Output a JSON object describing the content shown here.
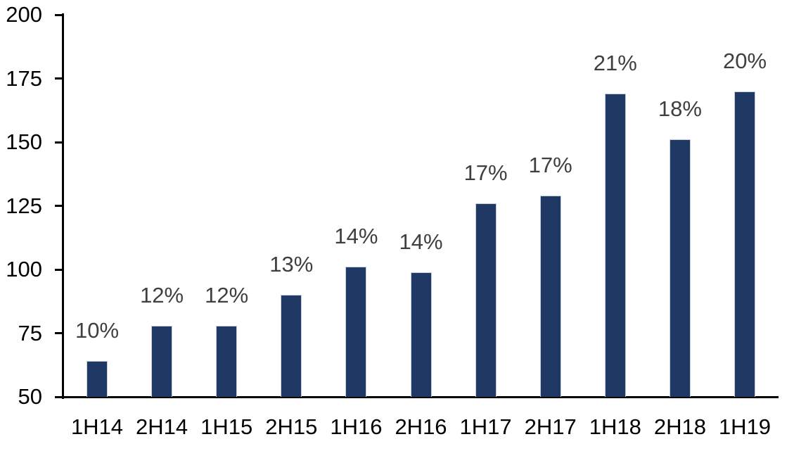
{
  "chart_data": {
    "type": "bar",
    "title": "",
    "xlabel": "",
    "ylabel": "",
    "categories": [
      "1H14",
      "2H14",
      "1H15",
      "2H15",
      "1H16",
      "2H16",
      "1H17",
      "2H17",
      "1H18",
      "2H18",
      "1H19"
    ],
    "values": [
      64,
      78,
      78,
      90,
      101,
      99,
      126,
      129,
      169,
      151,
      170
    ],
    "bar_labels": [
      "10%",
      "12%",
      "12%",
      "13%",
      "14%",
      "14%",
      "17%",
      "17%",
      "21%",
      "18%",
      "20%"
    ],
    "ylim": [
      50,
      200
    ],
    "yticks": [
      50,
      75,
      100,
      125,
      150,
      175,
      200
    ],
    "grid": false,
    "legend": false,
    "colors": {
      "bar_fill": "#1F3864",
      "bar_border": "#C7CEDB",
      "axis": "#000000",
      "tick_label": "#000000",
      "data_label": "#3F3F3F",
      "background": "#FFFFFF"
    }
  }
}
